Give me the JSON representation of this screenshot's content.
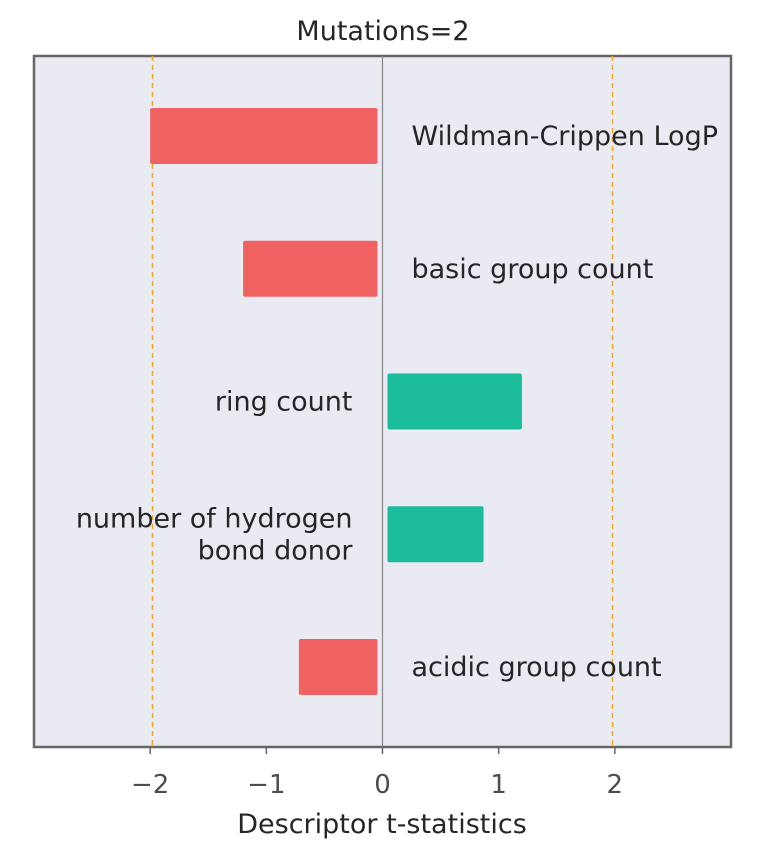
{
  "chart_data": {
    "type": "bar",
    "orientation": "horizontal",
    "title": "Mutations=2",
    "xlabel": "Descriptor t-statistics",
    "ylabel": "",
    "xlim": [
      -3,
      3
    ],
    "x_ticks": [
      "−2",
      "−1",
      "0",
      "1",
      "2"
    ],
    "x_tick_values": [
      -2,
      -1,
      0,
      1,
      2
    ],
    "threshold_lines": [
      -1.98,
      1.98
    ],
    "categories": [
      "Wildman-Crippen LogP",
      "basic group count",
      "ring count",
      "number of hydrogen\nbond donor",
      "acidic group count"
    ],
    "values": [
      -2.0,
      -1.2,
      1.2,
      0.87,
      -0.72
    ],
    "grid": false,
    "legend": "none",
    "colors": {
      "negative": "#f06262",
      "positive": "#1abc9c",
      "threshold": "#f5a623",
      "zero_line": "#888888",
      "plot_bg": "#eaeaf2",
      "frame": "#666666"
    }
  }
}
